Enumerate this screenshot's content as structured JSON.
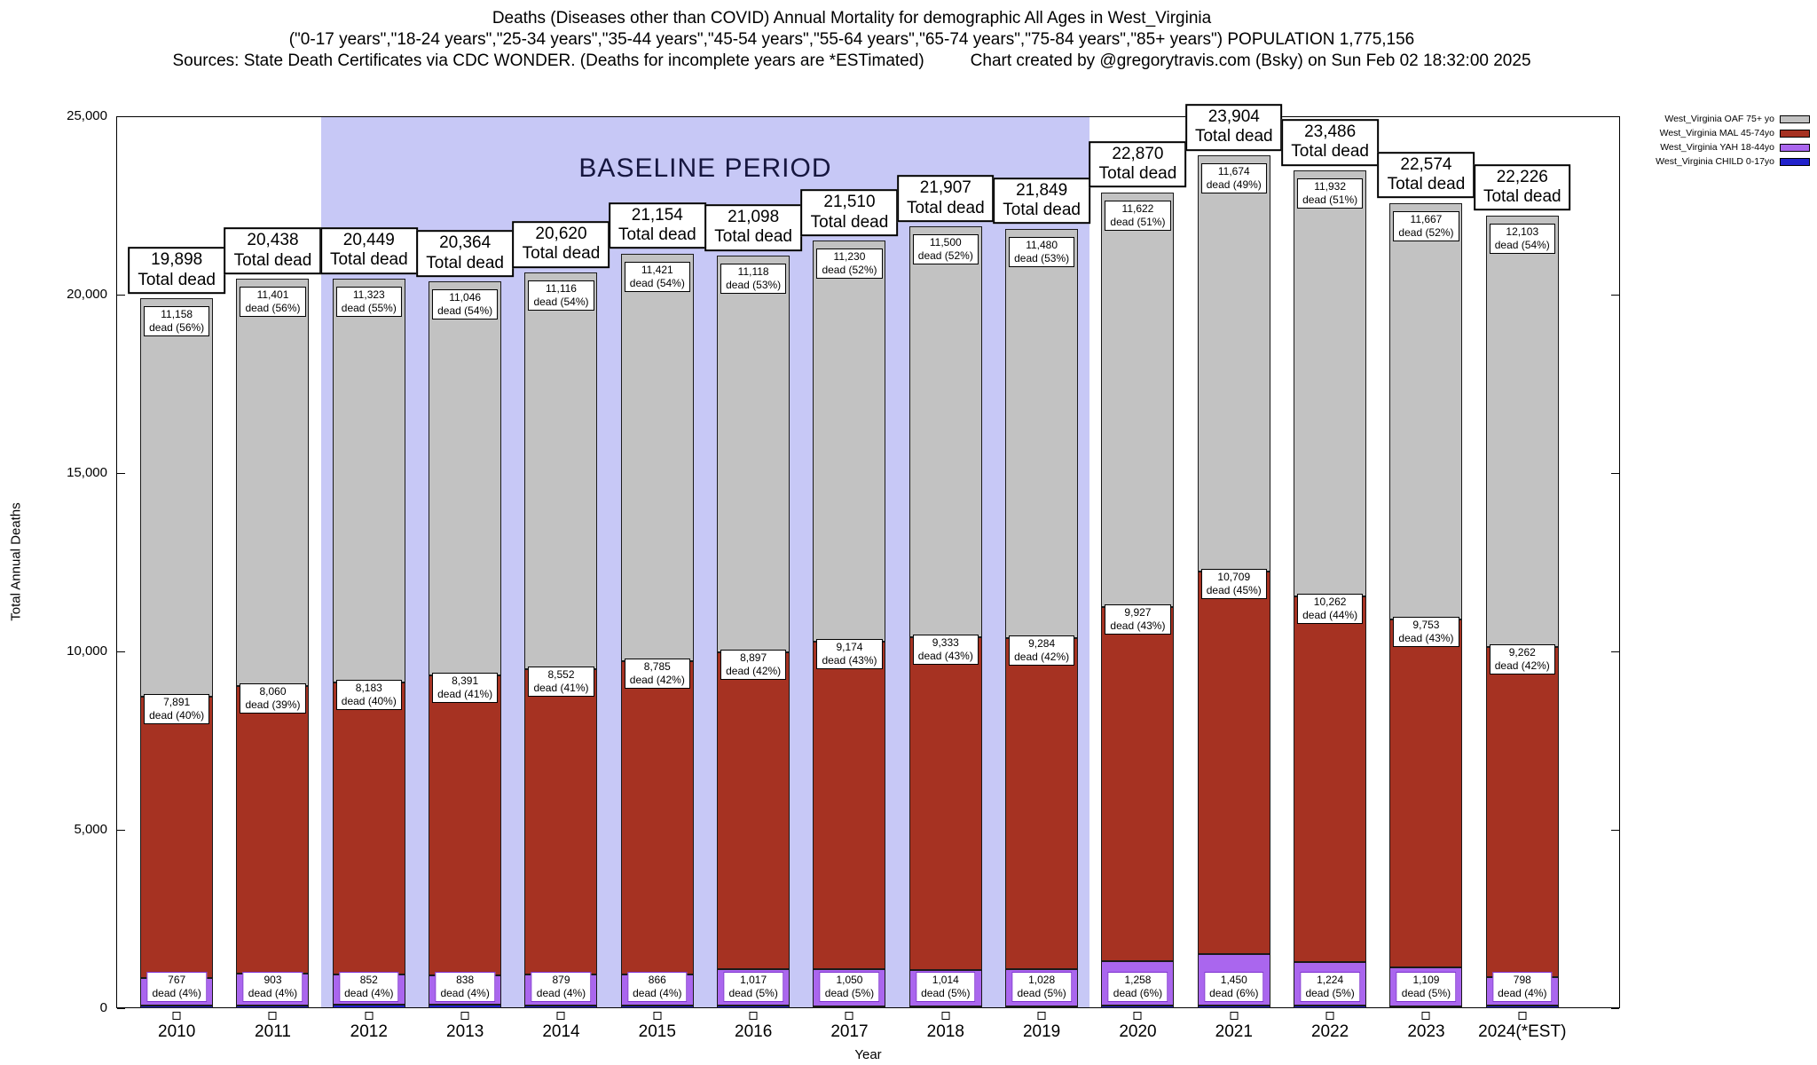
{
  "chart_data": {
    "type": "bar",
    "stacked": true,
    "title": "Deaths (Diseases other than COVID) Annual Mortality for demographic All Ages in West_Virginia",
    "subtitle": "(\"0-17 years\",\"18-24 years\",\"25-34 years\",\"35-44 years\",\"45-54 years\",\"55-64 years\",\"65-74 years\",\"75-84 years\",\"85+ years\") POPULATION 1,775,156",
    "source_line": "Sources: State Death Certificates via CDC WONDER. (Deaths for incomplete years are *ESTimated)",
    "credit_line": "Chart created by @gregorytravis.com (Bsky) on Sun Feb 02 18:32:00 2025",
    "xlabel": "Year",
    "ylabel": "Total Annual Deaths",
    "ylim": [
      0,
      25000
    ],
    "ytick_step": 5000,
    "grid": false,
    "legend_position": "top-right",
    "labels": {
      "total_suffix": "Total dead",
      "dead_word": "dead"
    },
    "baseline_period": {
      "label": "BASELINE PERIOD",
      "start": "2012",
      "end": "2019",
      "color": "#c7c8f6"
    },
    "categories": [
      "2010",
      "2011",
      "2012",
      "2013",
      "2014",
      "2015",
      "2016",
      "2017",
      "2018",
      "2019",
      "2020",
      "2021",
      "2022",
      "2023",
      "2024(*EST)"
    ],
    "totals": [
      19898,
      20438,
      20449,
      20364,
      20620,
      21154,
      21098,
      21510,
      21907,
      21849,
      22870,
      23904,
      23486,
      22574,
      22226
    ],
    "series": [
      {
        "name": "West_Virginia OAF 75+ yo",
        "color": "#c2c2c2",
        "values": [
          11158,
          11401,
          11323,
          11046,
          11116,
          11421,
          11118,
          11230,
          11500,
          11480,
          11622,
          11674,
          11932,
          11667,
          12103
        ],
        "pct": [
          56,
          56,
          55,
          54,
          54,
          54,
          53,
          52,
          52,
          53,
          51,
          49,
          51,
          52,
          54
        ]
      },
      {
        "name": "West_Virginia MAL 45-74yo",
        "color": "#a63222",
        "values": [
          7891,
          8060,
          8183,
          8391,
          8552,
          8785,
          8897,
          9174,
          9333,
          9284,
          9927,
          10709,
          10262,
          9753,
          9262
        ],
        "pct": [
          40,
          39,
          40,
          41,
          41,
          42,
          42,
          43,
          43,
          42,
          43,
          45,
          44,
          43,
          42
        ]
      },
      {
        "name": "West_Virginia YAH 18-44yo",
        "color": "#aa66ee",
        "values": [
          767,
          903,
          852,
          838,
          879,
          866,
          1017,
          1050,
          1014,
          1028,
          1258,
          1450,
          1224,
          1109,
          798
        ],
        "pct": [
          4,
          4,
          4,
          4,
          4,
          4,
          5,
          5,
          5,
          5,
          6,
          6,
          5,
          5,
          4
        ]
      },
      {
        "name": "West_Virginia CHILD 0-17yo",
        "color": "#2222cc",
        "values": [
          82,
          74,
          91,
          89,
          73,
          82,
          66,
          56,
          60,
          57,
          63,
          71,
          68,
          45,
          63
        ],
        "pct": null
      }
    ]
  }
}
